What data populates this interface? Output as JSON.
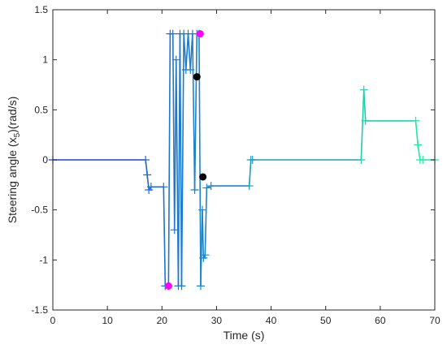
{
  "chart_data": {
    "type": "line",
    "xlabel": "Time (s)",
    "ylabel": {
      "main": "Steering angle (x",
      "sub": "5",
      "rest": ")(rad/s)"
    },
    "xlim": [
      0,
      70
    ],
    "ylim": [
      -1.5,
      1.5
    ],
    "x_ticks": [
      "0",
      "10",
      "20",
      "30",
      "40",
      "50",
      "60",
      "70"
    ],
    "y_ticks": [
      "1.5",
      "1",
      "0.5",
      "0",
      "-0.5",
      "-1",
      "-1.5"
    ],
    "grid": false,
    "colors": {
      "start": "#1f3fe0",
      "end": "#1ff0a0",
      "black": "#000000",
      "magenta": "#ff00ff"
    },
    "series": [
      {
        "x": [
          0,
          17,
          17.3,
          17.6,
          18,
          20.3,
          20.6,
          21.2,
          21.5,
          22.0,
          22.3,
          22.6,
          23.0,
          23.3,
          23.6,
          24.0,
          24.4,
          24.8,
          25.2,
          25.6,
          26.0,
          26.4,
          26.8,
          27.1,
          27.4,
          27.6,
          27.9,
          28.2,
          29,
          36,
          36.3,
          36.6,
          56.5,
          57,
          57.3,
          66.5,
          66.9,
          67.3,
          67.8,
          70
        ],
        "y": [
          0,
          0,
          -0.15,
          -0.3,
          -0.27,
          -0.27,
          -1.26,
          -1.26,
          1.26,
          1.26,
          -0.7,
          1.0,
          -1.26,
          1.26,
          -1.26,
          1.26,
          0.9,
          1.26,
          0.9,
          1.26,
          -0.3,
          1.26,
          1.26,
          -1.26,
          -0.5,
          -0.98,
          -0.95,
          -0.28,
          -0.26,
          -0.26,
          0.0,
          0.0,
          0.0,
          0.7,
          0.39,
          0.39,
          0.15,
          0.0,
          0.0,
          0.0
        ]
      }
    ],
    "markers": [
      {
        "x": 21.2,
        "y": -1.26,
        "color": "magenta"
      },
      {
        "x": 27.0,
        "y": 1.26,
        "color": "magenta"
      },
      {
        "x": 26.4,
        "y": 0.83,
        "color": "black"
      },
      {
        "x": 27.5,
        "y": -0.17,
        "color": "black"
      }
    ]
  }
}
